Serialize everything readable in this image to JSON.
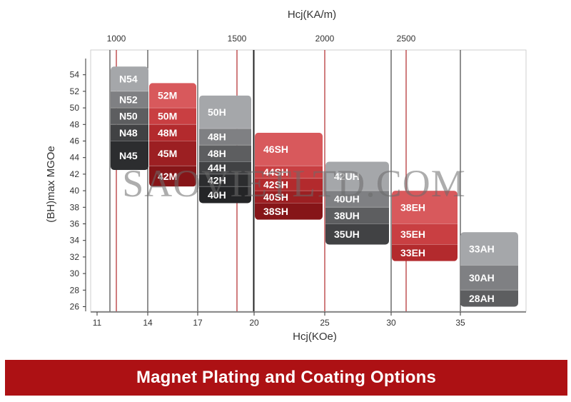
{
  "chart_data": {
    "type": "range-block",
    "top_axis": {
      "label": "Hcj(KA/m)",
      "ticks": [
        {
          "value": 1000,
          "label": "1000"
        },
        {
          "value": 1500,
          "label": "1500"
        },
        {
          "value": 2000,
          "label": "2000"
        },
        {
          "value": 2500,
          "label": "2500"
        }
      ]
    },
    "x_axis": {
      "label": "Hcj(KOe)",
      "ticks": [
        11,
        14,
        17,
        20,
        25,
        30,
        35
      ]
    },
    "y_axis": {
      "label": "(BH)max MGOe",
      "ticks": [
        26,
        28,
        30,
        32,
        34,
        36,
        38,
        40,
        42,
        44,
        46,
        48,
        50,
        52,
        54
      ]
    },
    "series": [
      {
        "name": "N",
        "hcj_min_koe": 12,
        "grades": [
          {
            "label": "N54",
            "bh_min": 52,
            "bh_max": 55
          },
          {
            "label": "N52",
            "bh_min": 50,
            "bh_max": 52
          },
          {
            "label": "N50",
            "bh_min": 48,
            "bh_max": 50
          },
          {
            "label": "N48",
            "bh_min": 46,
            "bh_max": 48
          },
          {
            "label": "N45",
            "bh_min": 42.5,
            "bh_max": 46
          }
        ]
      },
      {
        "name": "M",
        "hcj_min_koe": 14,
        "grades": [
          {
            "label": "52M",
            "bh_min": 50,
            "bh_max": 53
          },
          {
            "label": "50M",
            "bh_min": 48,
            "bh_max": 50
          },
          {
            "label": "48M",
            "bh_min": 46,
            "bh_max": 48
          },
          {
            "label": "45M",
            "bh_min": 43,
            "bh_max": 46
          },
          {
            "label": "42M",
            "bh_min": 40.5,
            "bh_max": 43
          }
        ]
      },
      {
        "name": "H",
        "hcj_min_koe": 17,
        "grades": [
          {
            "label": "50H",
            "bh_min": 47.5,
            "bh_max": 51.5
          },
          {
            "label": "48H",
            "bh_min": 45.5,
            "bh_max": 47.5
          },
          {
            "label": "48H",
            "bh_min": 43.5,
            "bh_max": 45.5
          },
          {
            "label": "44H",
            "bh_min": 42,
            "bh_max": 43.5
          },
          {
            "label": "42H",
            "bh_min": 40.5,
            "bh_max": 42
          },
          {
            "label": "40H",
            "bh_min": 38.5,
            "bh_max": 40.5
          }
        ]
      },
      {
        "name": "SH",
        "hcj_min_koe": 20,
        "grades": [
          {
            "label": "46SH",
            "bh_min": 43,
            "bh_max": 47
          },
          {
            "label": "44SH",
            "bh_min": 41.5,
            "bh_max": 43
          },
          {
            "label": "42SH",
            "bh_min": 40,
            "bh_max": 41.5
          },
          {
            "label": "40SH",
            "bh_min": 38.5,
            "bh_max": 40
          },
          {
            "label": "38SH",
            "bh_min": 36.5,
            "bh_max": 38.5
          }
        ]
      },
      {
        "name": "UH",
        "hcj_min_koe": 25,
        "grades": [
          {
            "label": "42UH",
            "bh_min": 40,
            "bh_max": 43.5
          },
          {
            "label": "40UH",
            "bh_min": 38,
            "bh_max": 40
          },
          {
            "label": "38UH",
            "bh_min": 36,
            "bh_max": 38
          },
          {
            "label": "35UH",
            "bh_min": 33.5,
            "bh_max": 36
          }
        ]
      },
      {
        "name": "EH",
        "hcj_min_koe": 30,
        "grades": [
          {
            "label": "38EH",
            "bh_min": 36,
            "bh_max": 40
          },
          {
            "label": "35EH",
            "bh_min": 33.5,
            "bh_max": 36
          },
          {
            "label": "33EH",
            "bh_min": 31.5,
            "bh_max": 33.5
          }
        ]
      },
      {
        "name": "AH",
        "hcj_min_koe": 35,
        "grades": [
          {
            "label": "33AH",
            "bh_min": 31,
            "bh_max": 35
          },
          {
            "label": "30AH",
            "bh_min": 28,
            "bh_max": 31
          },
          {
            "label": "28AH",
            "bh_min": 26,
            "bh_max": 28
          }
        ]
      }
    ],
    "colors": {
      "gray_shades": [
        "#a5a7aa",
        "#7f8083",
        "#5d5e60",
        "#414244",
        "#2c2d2f",
        "#242527"
      ],
      "red_shades": [
        "#d8595c",
        "#c93f42",
        "#b32a2d",
        "#9c1f22",
        "#861518"
      ],
      "axis": "#333333",
      "red_gridline": "#b0272a",
      "black_gridline": "#222222"
    },
    "grid": true
  },
  "watermark": "SAOVIETLTD.COM",
  "banner": {
    "text": "Magnet Plating and Coating Options",
    "background": "#ad1114"
  }
}
